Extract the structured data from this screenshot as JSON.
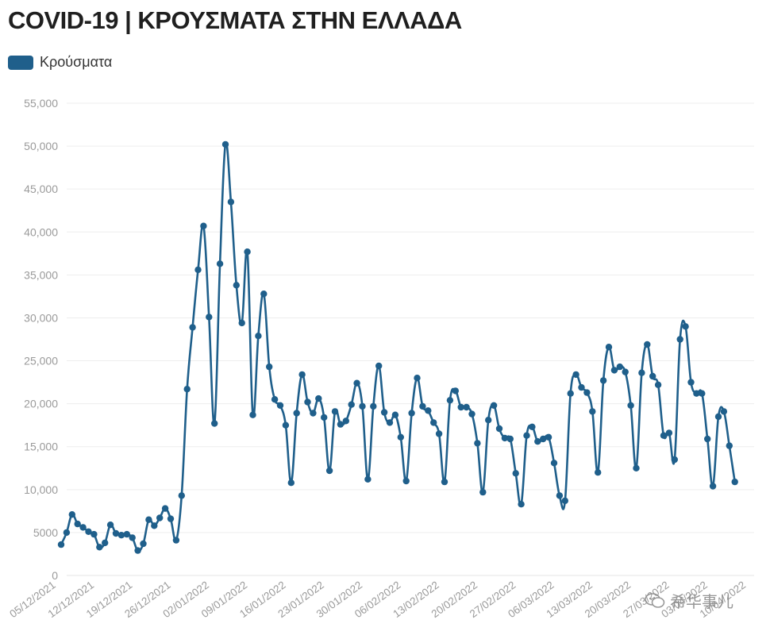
{
  "chart_data": {
    "type": "line",
    "title": "COVID-19 | ΚΡΟΥΣΜΑΤΑ ΣΤΗΝ ΕΛΛΑΔΑ",
    "legend_position": "top-left",
    "grid": true,
    "series": [
      {
        "name": "Κρούσματα",
        "color": "#1f5f8b",
        "values": [
          3600,
          5000,
          7100,
          6000,
          5600,
          5100,
          4800,
          3300,
          3800,
          5900,
          4900,
          4700,
          4800,
          4400,
          2900,
          3700,
          6500,
          5800,
          6700,
          7800,
          6600,
          4100,
          9300,
          21700,
          28900,
          35600,
          40700,
          30100,
          17700,
          36300,
          50200,
          43500,
          33800,
          29400,
          37700,
          18700,
          27900,
          32800,
          24300,
          20500,
          19800,
          17500,
          10800,
          18900,
          23400,
          20200,
          18900,
          20600,
          18400,
          12200,
          19100,
          17600,
          18000,
          19900,
          22400,
          19700,
          11200,
          19700,
          24400,
          19000,
          17800,
          18700,
          16100,
          11000,
          18900,
          23000,
          19700,
          19200,
          17800,
          16500,
          10900,
          20400,
          21500,
          19600,
          19600,
          18800,
          15400,
          9700,
          18100,
          19800,
          17100,
          16000,
          15900,
          11900,
          8300,
          16300,
          17300,
          15600,
          15900,
          16100,
          13100,
          9300,
          8700,
          21200,
          23400,
          21900,
          21300,
          19100,
          12000,
          22700,
          26600,
          23900,
          24300,
          23700,
          19800,
          12500,
          23600,
          26900,
          23200,
          22200,
          16300,
          16600,
          13500,
          27500,
          29000,
          22500,
          21200,
          21200,
          15900,
          10400,
          18500,
          19100,
          15100,
          10900
        ]
      }
    ],
    "x_start": "2021-12-05",
    "xtick_labels": [
      "05/12/2021",
      "12/12/2021",
      "19/12/2021",
      "26/12/2021",
      "02/01/2022",
      "09/01/2022",
      "16/01/2022",
      "23/01/2022",
      "30/01/2022",
      "06/02/2022",
      "13/02/2022",
      "20/02/2022",
      "27/02/2022",
      "06/03/2022",
      "13/03/2022",
      "20/03/2022",
      "27/03/2022",
      "03/04/2022",
      "10/04/2022"
    ],
    "ylim": [
      0,
      55000
    ],
    "yticks": [
      0,
      5000,
      10000,
      15000,
      20000,
      25000,
      30000,
      35000,
      40000,
      45000,
      50000,
      55000
    ],
    "ytick_labels": [
      "0",
      "5000",
      "10,000",
      "15,000",
      "20,000",
      "25,000",
      "30,000",
      "35,000",
      "40,000",
      "45,000",
      "50,000",
      "55,000"
    ]
  },
  "watermark": {
    "text": "希华事儿"
  }
}
